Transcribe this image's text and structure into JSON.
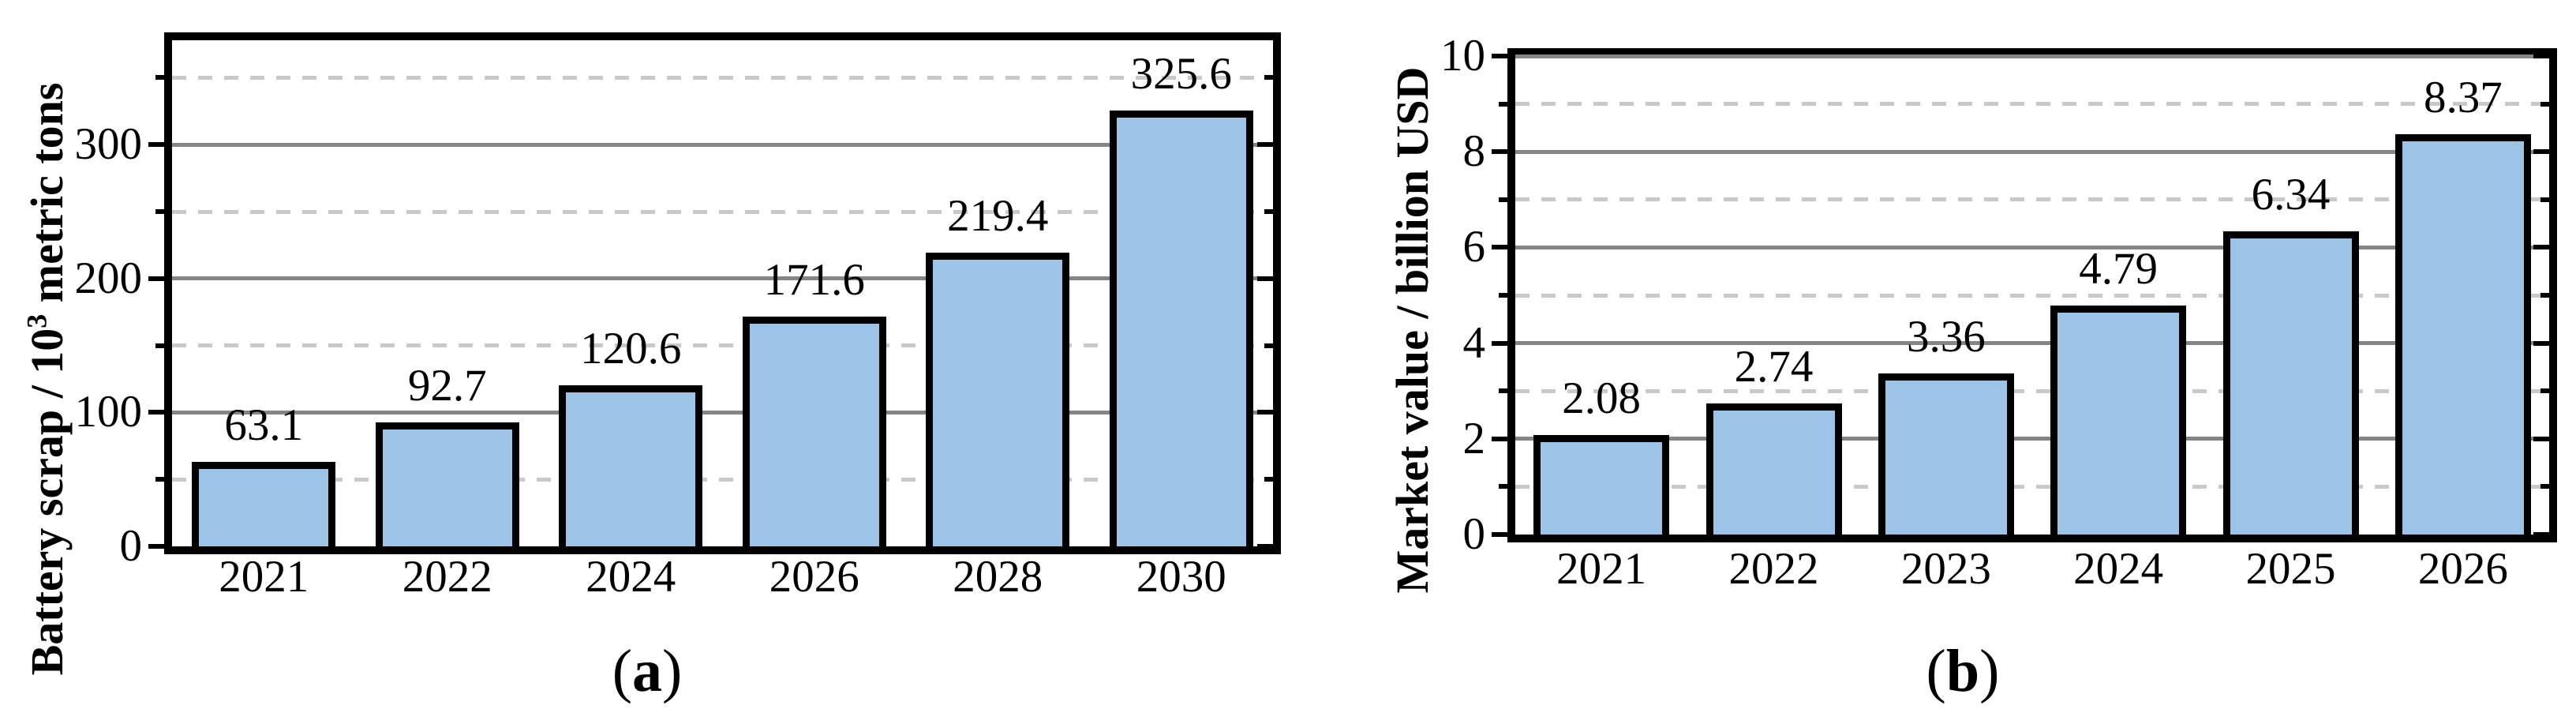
{
  "page": {
    "background": "#ffffff"
  },
  "charts": [
    {
      "caption": {
        "open": "(",
        "letter": "a",
        "close": ")"
      },
      "y_title": {
        "pre": "Battery scrap / 10",
        "sup": "3",
        "post": " metric tons"
      },
      "chart_data": {
        "type": "bar",
        "title": "",
        "xlabel": "",
        "ylabel": "Battery scrap / 10³ metric tons",
        "categories": [
          "2021",
          "2022",
          "2024",
          "2026",
          "2028",
          "2030"
        ],
        "values": [
          63.1,
          92.7,
          120.6,
          171.6,
          219.4,
          325.6
        ],
        "value_labels": [
          "63.1",
          "92.7",
          "120.6",
          "171.6",
          "219.4",
          "325.6"
        ],
        "ylim": [
          0,
          378
        ],
        "yticks_major": [
          0,
          100,
          200,
          300
        ],
        "ytick_labels": [
          "0",
          "100",
          "200",
          "300"
        ],
        "yticks_minor": [
          50,
          150,
          250,
          350
        ],
        "grid_major_style": "solid",
        "grid_minor_style": "dashed",
        "legend": "none",
        "colors": {
          "bar_fill": "#9DC3E6",
          "bar_border": "#000000",
          "grid_major": "#858585",
          "grid_minor": "#c9c9c9",
          "axis": "#000000"
        }
      }
    },
    {
      "caption": {
        "open": "(",
        "letter": "b",
        "close": ")"
      },
      "y_title": {
        "pre": "Market value / billion USD",
        "sup": "",
        "post": ""
      },
      "chart_data": {
        "type": "bar",
        "title": "",
        "xlabel": "",
        "ylabel": "Market value / billion USD",
        "categories": [
          "2021",
          "2022",
          "2023",
          "2024",
          "2025",
          "2026"
        ],
        "values": [
          2.08,
          2.74,
          3.36,
          4.79,
          6.34,
          8.37
        ],
        "value_labels": [
          "2.08",
          "2.74",
          "3.36",
          "4.79",
          "6.34",
          "8.37"
        ],
        "ylim": [
          0,
          10
        ],
        "yticks_major": [
          0,
          2,
          4,
          6,
          8,
          10
        ],
        "ytick_labels": [
          "0",
          "2",
          "4",
          "6",
          "8",
          "10"
        ],
        "yticks_minor": [
          1,
          3,
          5,
          7,
          9
        ],
        "grid_major_style": "solid",
        "grid_minor_style": "dashed",
        "legend": "none",
        "colors": {
          "bar_fill": "#9DC3E6",
          "bar_border": "#000000",
          "grid_major": "#858585",
          "grid_minor": "#c9c9c9",
          "axis": "#000000"
        }
      }
    }
  ]
}
